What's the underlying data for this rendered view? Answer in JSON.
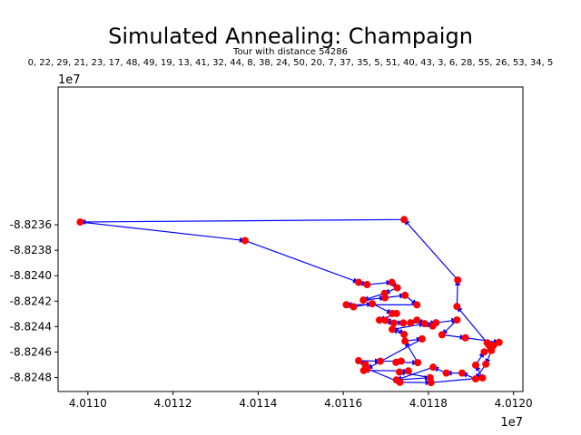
{
  "figure": {
    "title": "Simulated Annealing: Champaign",
    "subtitle": "Tour with distance 54286",
    "order_line": "0, 22, 29, 21, 23, 17, 48, 49, 19, 13, 41, 32, 44, 8, 38, 24, 50, 20, 7, 37, 35, 5, 51, 40, 43, 3, 6, 28, 55, 26, 53, 34, 5",
    "x_offset_label": "1e7",
    "y_offset_label": "1e7"
  },
  "chart_data": {
    "type": "scatter",
    "title": "Simulated Annealing: Champaign",
    "subtitle": "Tour with distance 54286",
    "xlabel": "",
    "ylabel": "",
    "xlim": [
      4.01093,
      4.012022
    ],
    "ylim": [
      -8.82491,
      -8.822517
    ],
    "x_ticks": [
      4.011,
      4.0112,
      4.0114,
      4.0116,
      4.0118,
      4.012
    ],
    "x_tick_labels": [
      "4.0110",
      "4.0112",
      "4.0114",
      "4.0116",
      "4.0118",
      "4.0120"
    ],
    "y_ticks": [
      -8.8236,
      -8.8238,
      -8.824,
      -8.8242,
      -8.8244,
      -8.8246,
      -8.8248
    ],
    "y_tick_labels": [
      "-8.8236",
      "-8.8238",
      "-8.8240",
      "-8.8242",
      "-8.8244",
      "-8.8246",
      "-8.8248"
    ],
    "point_color": "#ff0000",
    "path_color": "#0000ff",
    "grid": false,
    "tour_x": [
      4.011743,
      4.010982,
      4.011369,
      4.011636,
      4.011656,
      4.011714,
      4.011727,
      4.011697,
      4.011647,
      4.011698,
      4.011745,
      4.011773,
      4.011607,
      4.011624,
      4.011668,
      4.011715,
      4.011725,
      4.011685,
      4.011719,
      4.011741,
      4.011699,
      4.011743,
      4.011715,
      4.011791,
      4.01181,
      4.011773,
      4.011758,
      4.011818,
      4.011867,
      4.011832,
      4.011887,
      4.011966,
      4.011942,
      4.011948,
      4.011935,
      4.011911,
      4.011879,
      4.011842,
      4.011811,
      4.011725,
      4.011804,
      4.011732,
      4.011753,
      4.011648,
      4.011652,
      4.011636,
      4.011687,
      4.011736,
      4.011724,
      4.011775,
      4.011745,
      4.011785,
      4.011656,
      4.011733,
      4.011806,
      4.011927,
      4.011911,
      4.011931,
      4.011953,
      4.011938,
      4.011867,
      4.011869,
      4.011743
    ],
    "tour_y": [
      -8.823559,
      -8.823578,
      -8.823724,
      -8.824052,
      -8.82407,
      -8.824052,
      -8.824095,
      -8.824139,
      -8.824192,
      -8.824173,
      -8.824154,
      -8.824229,
      -8.824228,
      -8.824244,
      -8.82422,
      -8.824297,
      -8.824297,
      -8.824349,
      -8.824372,
      -8.824371,
      -8.824351,
      -8.824461,
      -8.824422,
      -8.824377,
      -8.824395,
      -8.824349,
      -8.82437,
      -8.82437,
      -8.824348,
      -8.824464,
      -8.824488,
      -8.824524,
      -8.824545,
      -8.824588,
      -8.824695,
      -8.824811,
      -8.824765,
      -8.824765,
      -8.824719,
      -8.824819,
      -8.824801,
      -8.824757,
      -8.824748,
      -8.824745,
      -8.824698,
      -8.824668,
      -8.824672,
      -8.824671,
      -8.824681,
      -8.824683,
      -8.824514,
      -8.824497,
      -8.824731,
      -8.824838,
      -8.82484,
      -8.824803,
      -8.824703,
      -8.824599,
      -8.824548,
      -8.824527,
      -8.824242,
      -8.824034,
      -8.823559
    ]
  }
}
